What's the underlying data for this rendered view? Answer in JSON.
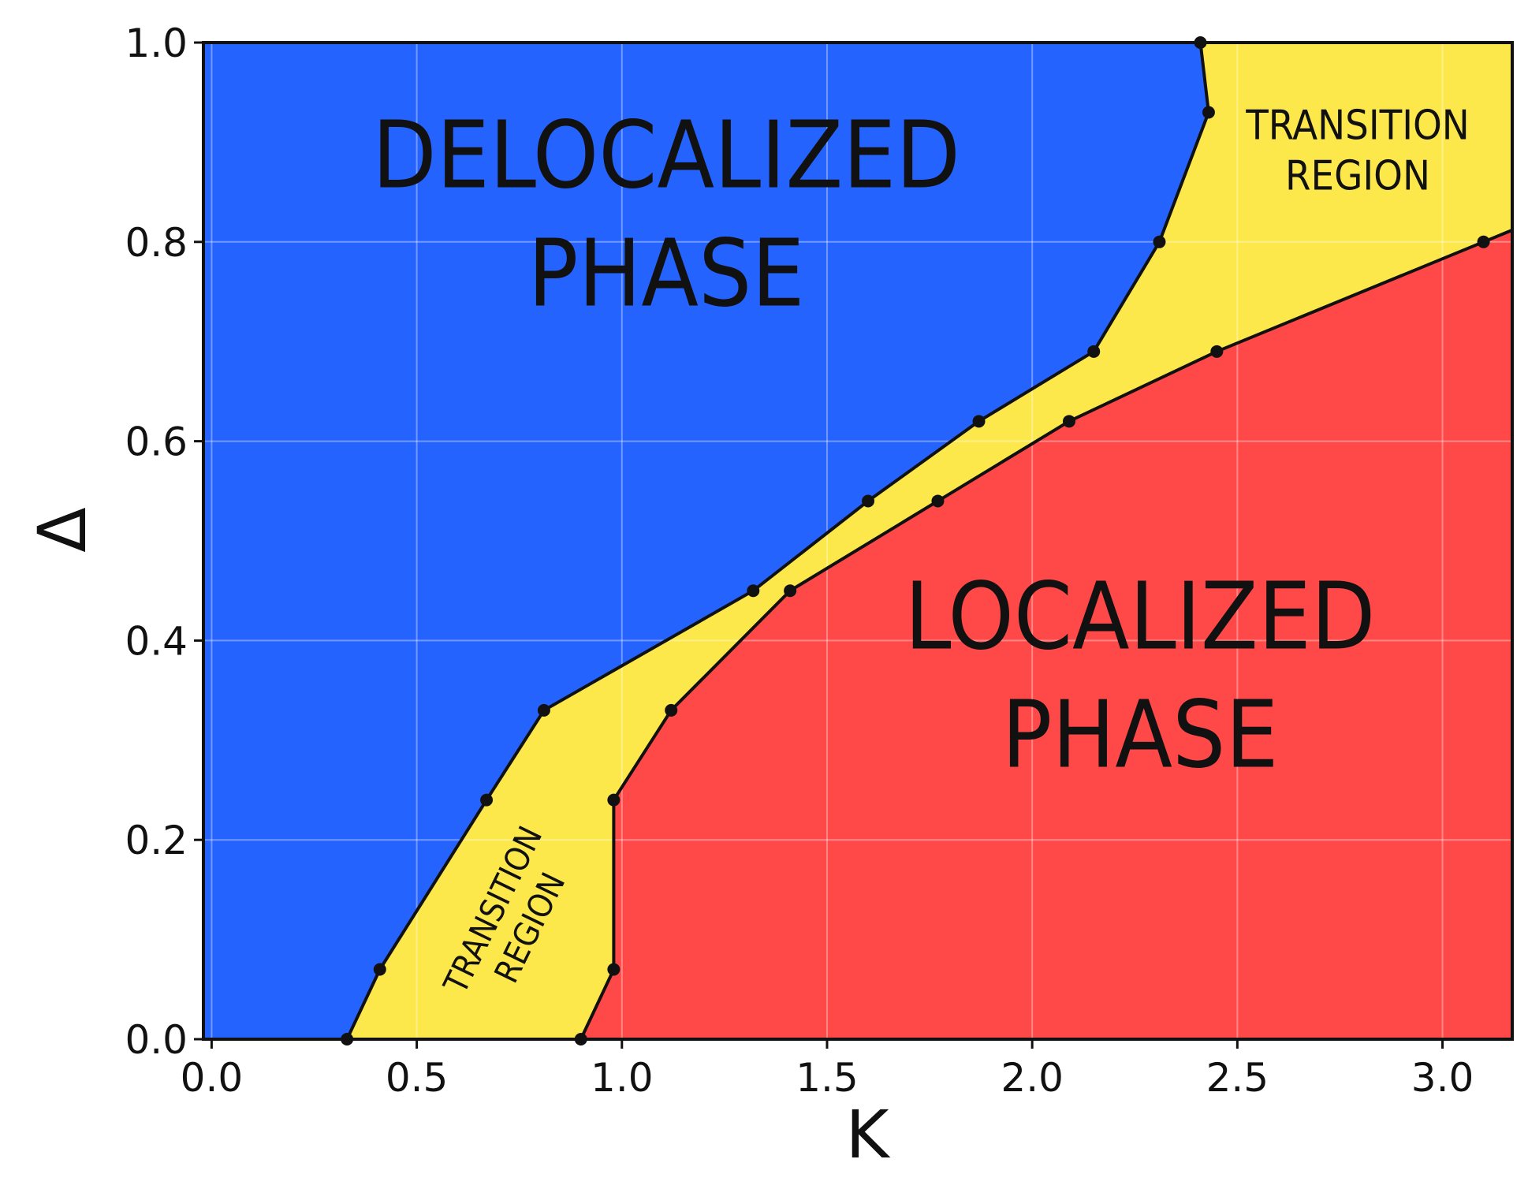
{
  "chart_data": {
    "type": "area",
    "title": "",
    "xlabel": "K",
    "ylabel": "Δ",
    "xlim": [
      -0.02,
      3.17
    ],
    "ylim": [
      0.0,
      1.0
    ],
    "grid": true,
    "xticks": [
      {
        "value": 0.0,
        "label": "0.0"
      },
      {
        "value": 0.5,
        "label": "0.5"
      },
      {
        "value": 1.0,
        "label": "1.0"
      },
      {
        "value": 1.5,
        "label": "1.5"
      },
      {
        "value": 2.0,
        "label": "2.0"
      },
      {
        "value": 2.5,
        "label": "2.5"
      },
      {
        "value": 3.0,
        "label": "3.0"
      }
    ],
    "yticks": [
      {
        "value": 0.0,
        "label": "0.0"
      },
      {
        "value": 0.2,
        "label": "0.2"
      },
      {
        "value": 0.4,
        "label": "0.4"
      },
      {
        "value": 0.6,
        "label": "0.6"
      },
      {
        "value": 0.8,
        "label": "0.8"
      },
      {
        "value": 1.0,
        "label": "1.0"
      }
    ],
    "colors": {
      "delocalized": "#2563ff",
      "transition": "#fde84b",
      "localized": "#ff4848",
      "boundary": "#111111",
      "grid": "#ffffff"
    },
    "boundaries": [
      {
        "points": [
          [
            0.33,
            0.0
          ],
          [
            0.41,
            0.07
          ],
          [
            0.67,
            0.24
          ],
          [
            0.81,
            0.33
          ],
          [
            1.32,
            0.45
          ],
          [
            1.6,
            0.54
          ],
          [
            1.87,
            0.62
          ],
          [
            2.15,
            0.69
          ],
          [
            2.31,
            0.8
          ],
          [
            2.43,
            0.93
          ],
          [
            2.41,
            1.0
          ]
        ]
      },
      {
        "points": [
          [
            0.9,
            0.0
          ],
          [
            0.98,
            0.07
          ],
          [
            0.98,
            0.24
          ],
          [
            1.12,
            0.33
          ],
          [
            1.41,
            0.45
          ],
          [
            1.77,
            0.54
          ],
          [
            2.09,
            0.62
          ],
          [
            2.45,
            0.69
          ],
          [
            3.1,
            0.8
          ]
        ]
      }
    ],
    "regions": [
      {
        "key": "delocalized",
        "lines": [
          "DELOCALIZED",
          "PHASE"
        ]
      },
      {
        "key": "transition_top",
        "lines": [
          "TRANSITION",
          "REGION"
        ]
      },
      {
        "key": "transition_bottom",
        "lines": [
          "TRANSITION",
          "REGION"
        ]
      },
      {
        "key": "localized",
        "lines": [
          "LOCALIZED",
          "PHASE"
        ]
      }
    ]
  }
}
